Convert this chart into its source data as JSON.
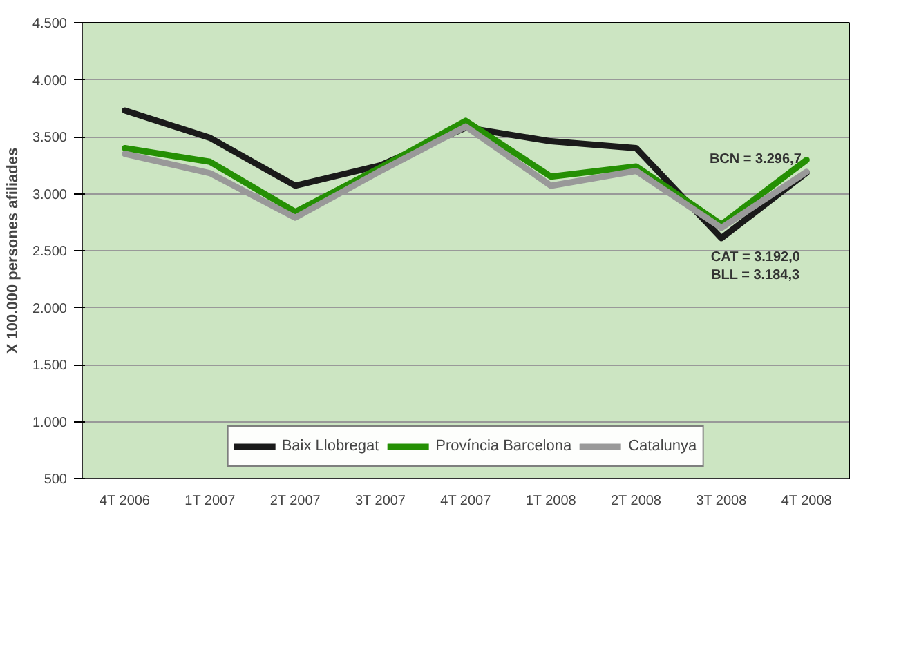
{
  "chart_data": {
    "type": "line",
    "ylabel": "X 100.000 persones afiliades",
    "categories": [
      "4T 2006",
      "1T 2007",
      "2T 2007",
      "3T 2007",
      "4T 2007",
      "1T 2008",
      "2T 2008",
      "3T 2008",
      "4T 2008"
    ],
    "series": [
      {
        "name": "Baix Llobregat",
        "color": "#1a1a1a",
        "values": [
          3730,
          3490,
          3070,
          3250,
          3580,
          3460,
          3400,
          2610,
          3184.3
        ]
      },
      {
        "name": "Província Barcelona",
        "color": "#259004",
        "values": [
          3400,
          3280,
          2840,
          3230,
          3640,
          3150,
          3240,
          2730,
          3296.7
        ]
      },
      {
        "name": "Catalunya",
        "color": "#999999",
        "values": [
          3350,
          3180,
          2790,
          3200,
          3590,
          3070,
          3200,
          2700,
          3192.0
        ]
      }
    ],
    "ylim": [
      500,
      4500
    ],
    "yticks": [
      {
        "value": 500,
        "label": "500"
      },
      {
        "value": 1000,
        "label": "1.000"
      },
      {
        "value": 1500,
        "label": "1.500"
      },
      {
        "value": 2000,
        "label": "2.000"
      },
      {
        "value": 2500,
        "label": "2.500"
      },
      {
        "value": 3000,
        "label": "3.000"
      },
      {
        "value": 3500,
        "label": "3.500"
      },
      {
        "value": 4000,
        "label": "4.000"
      },
      {
        "value": 4500,
        "label": "4.500"
      }
    ],
    "annotations": [
      "BCN = 3.296,7",
      "CAT = 3.192,0",
      "BLL = 3.184,3"
    ],
    "grid": "y",
    "legend": "bottom",
    "line_style": "solid",
    "marker": "none"
  }
}
